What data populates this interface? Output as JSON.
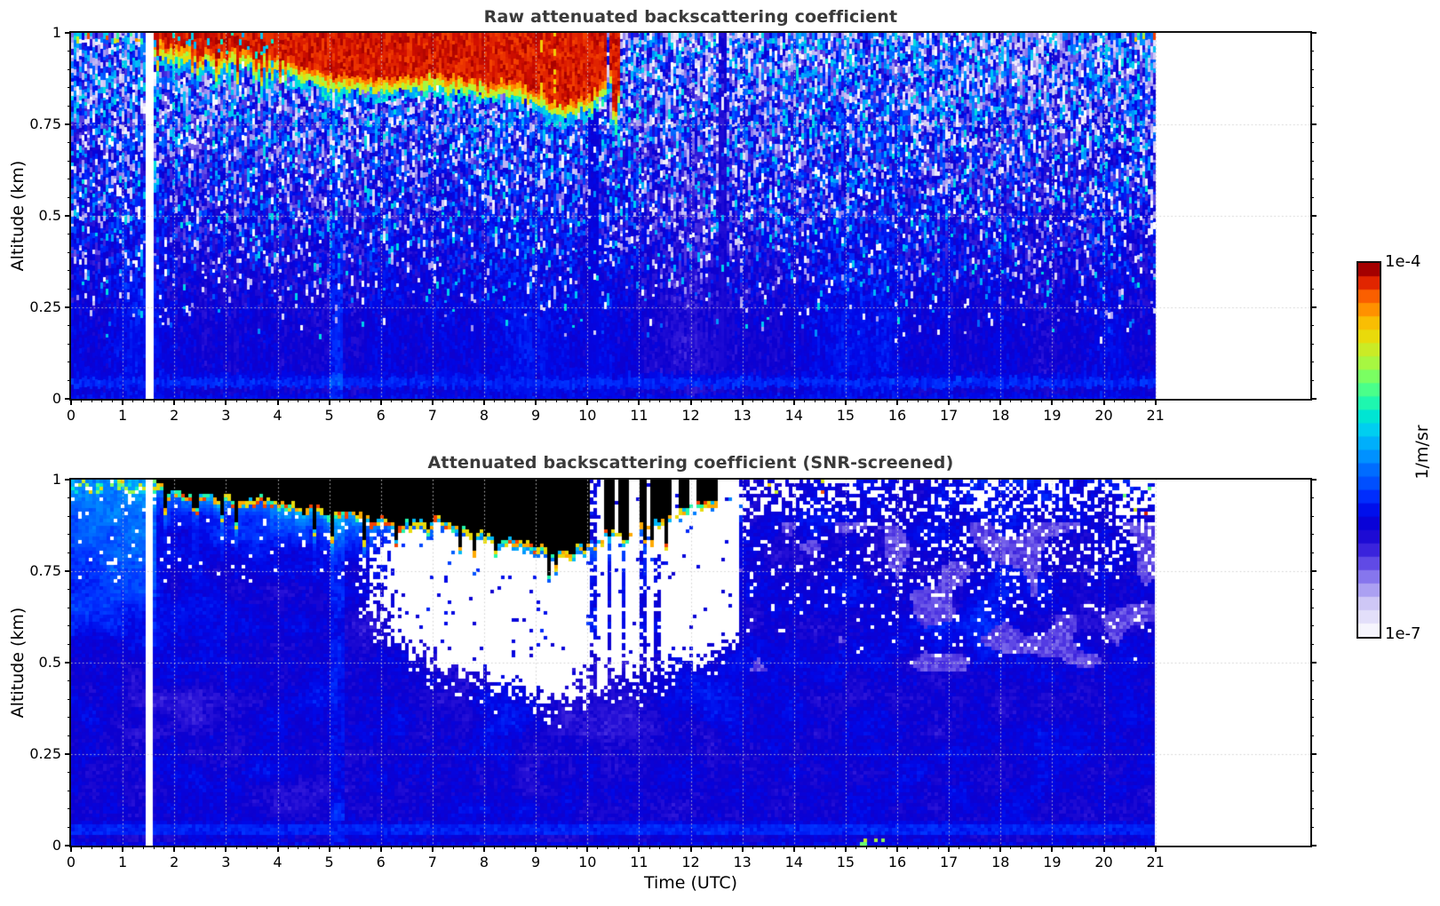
{
  "figure": {
    "background": "#ffffff",
    "title_color": "#3a3a3a",
    "xlabel": "Time (UTC)",
    "ylabel": "Altitude (km)",
    "panels": [
      {
        "title": "Raw attenuated backscattering coefficient"
      },
      {
        "title": "Attenuated backscattering coefficient (SNR-screened)"
      }
    ],
    "colorbar": {
      "label_top": "1e-4",
      "label_bottom": "1e-7",
      "unit": "1/m/sr",
      "levels": 28
    }
  },
  "colormap": {
    "scale": "log10",
    "domain": [
      1e-07,
      0.0001
    ],
    "stops": [
      [
        0.0,
        "#ffffff"
      ],
      [
        0.04,
        "#ece9fb"
      ],
      [
        0.09,
        "#cdc6f6"
      ],
      [
        0.13,
        "#a89cf2"
      ],
      [
        0.17,
        "#7e6cec"
      ],
      [
        0.21,
        "#5138e2"
      ],
      [
        0.25,
        "#2b14d8"
      ],
      [
        0.29,
        "#0d00cf"
      ],
      [
        0.33,
        "#0008e8"
      ],
      [
        0.38,
        "#0030ff"
      ],
      [
        0.44,
        "#0068ff"
      ],
      [
        0.5,
        "#00a2ff"
      ],
      [
        0.55,
        "#00ccf2"
      ],
      [
        0.6,
        "#00eec8"
      ],
      [
        0.65,
        "#3cff96"
      ],
      [
        0.7,
        "#7fff5e"
      ],
      [
        0.75,
        "#bdf231"
      ],
      [
        0.8,
        "#e8dc0c"
      ],
      [
        0.85,
        "#ffb300"
      ],
      [
        0.89,
        "#ff7d00"
      ],
      [
        0.93,
        "#f64400"
      ],
      [
        0.96,
        "#d31000"
      ],
      [
        0.98,
        "#a80000"
      ],
      [
        1.0,
        "#7f0000"
      ]
    ]
  },
  "chart_data": [
    {
      "type": "heatmap",
      "title": "Raw attenuated backscattering coefficient",
      "xlabel": "Time (UTC)",
      "ylabel": "Altitude (km)",
      "units": "1/m/sr",
      "x_axis_range_hours": [
        0,
        24
      ],
      "x_data_end_hour": 21,
      "x_ticks": [
        0,
        1,
        2,
        3,
        4,
        5,
        6,
        7,
        8,
        9,
        10,
        11,
        12,
        13,
        14,
        15,
        16,
        17,
        18,
        19,
        20,
        21
      ],
      "y_range_km": [
        0,
        1
      ],
      "y_ticks": [
        0,
        0.25,
        0.5,
        0.75,
        1
      ],
      "value_range": [
        1e-07,
        0.0001
      ],
      "seed": 42,
      "features": {
        "dropout_column_hours": [
          1.46,
          1.6
        ],
        "surface_bright_band_km": [
          0.03,
          0.055
        ],
        "aerosol_plume_hours": [
          5.0,
          5.28
        ],
        "calm_columns_hours": [
          [
            10.0,
            10.22
          ],
          [
            12.52,
            12.72
          ]
        ],
        "cloud_interval_hours": [
          1.62,
          10.38
        ],
        "cloud_bottom_km": [
          [
            1.62,
            0.975
          ],
          [
            1.9,
            0.96
          ],
          [
            2.3,
            0.955
          ],
          [
            2.8,
            0.95
          ],
          [
            3.3,
            0.945
          ],
          [
            3.8,
            0.94
          ],
          [
            4.1,
            0.935
          ],
          [
            4.45,
            0.9
          ],
          [
            4.8,
            0.885
          ],
          [
            5.4,
            0.878
          ],
          [
            6.0,
            0.872
          ],
          [
            6.6,
            0.875
          ],
          [
            7.0,
            0.89
          ],
          [
            7.35,
            0.875
          ],
          [
            7.9,
            0.868
          ],
          [
            8.5,
            0.862
          ],
          [
            8.9,
            0.845
          ],
          [
            9.2,
            0.82
          ],
          [
            9.55,
            0.8
          ],
          [
            9.85,
            0.815
          ],
          [
            10.1,
            0.83
          ],
          [
            10.38,
            0.875
          ]
        ],
        "cloud_blob_interval_hours": [
          10.44,
          10.64
        ],
        "cloud_blob_bottom_km": [
          [
            10.44,
            0.93
          ],
          [
            10.5,
            0.8
          ],
          [
            10.56,
            0.78
          ],
          [
            10.64,
            0.9
          ]
        ]
      }
    },
    {
      "type": "heatmap",
      "title": "Attenuated backscattering coefficient (SNR-screened)",
      "xlabel": "Time (UTC)",
      "ylabel": "Altitude (km)",
      "units": "1/m/sr",
      "x_axis_range_hours": [
        0,
        24
      ],
      "x_data_end_hour": 21,
      "x_ticks": [
        0,
        1,
        2,
        3,
        4,
        5,
        6,
        7,
        8,
        9,
        10,
        11,
        12,
        13,
        14,
        15,
        16,
        17,
        18,
        19,
        20,
        21
      ],
      "y_range_km": [
        0,
        1
      ],
      "y_ticks": [
        0,
        0.25,
        0.5,
        0.75,
        1
      ],
      "value_range": [
        1e-07,
        0.0001
      ],
      "seed": 1337,
      "features": {
        "dropout_column_hours": [
          1.46,
          1.6
        ],
        "surface_bright_band_km": [
          0.03,
          0.055
        ],
        "aerosol_plume_hours": [
          5.0,
          5.28
        ],
        "black_saturated_interval_hours": [
          1.62,
          12.5
        ],
        "black_top_boundary_km": [
          [
            1.62,
            0.985
          ],
          [
            2.0,
            0.968
          ],
          [
            2.6,
            0.958
          ],
          [
            3.2,
            0.952
          ],
          [
            3.8,
            0.945
          ],
          [
            4.3,
            0.93
          ],
          [
            5.0,
            0.915
          ],
          [
            5.6,
            0.905
          ],
          [
            6.1,
            0.895
          ],
          [
            6.4,
            0.885
          ],
          [
            6.8,
            0.878
          ],
          [
            7.05,
            0.895
          ],
          [
            7.35,
            0.88
          ],
          [
            7.7,
            0.858
          ],
          [
            8.1,
            0.845
          ],
          [
            8.5,
            0.838
          ],
          [
            8.9,
            0.822
          ],
          [
            9.25,
            0.805
          ],
          [
            9.55,
            0.795
          ],
          [
            9.85,
            0.812
          ],
          [
            10.1,
            0.825
          ],
          [
            10.35,
            0.85
          ],
          [
            10.6,
            0.862
          ],
          [
            10.9,
            0.878
          ],
          [
            11.2,
            0.888
          ],
          [
            11.5,
            0.89
          ],
          [
            11.8,
            0.915
          ],
          [
            12.1,
            0.93
          ],
          [
            12.5,
            0.95
          ]
        ],
        "black_gaps_hours": [
          [
            10.05,
            10.33
          ],
          [
            10.5,
            10.6
          ],
          [
            10.82,
            10.98
          ],
          [
            11.15,
            11.25
          ],
          [
            11.6,
            11.75
          ],
          [
            11.95,
            12.1
          ]
        ],
        "snr_mask_interval_hours": [
          5.4,
          12.95
        ],
        "snr_mask_bottom_km": [
          [
            5.4,
            0.66
          ],
          [
            5.8,
            0.6
          ],
          [
            6.2,
            0.545
          ],
          [
            6.6,
            0.51
          ],
          [
            7.0,
            0.5
          ],
          [
            7.4,
            0.465
          ],
          [
            7.9,
            0.445
          ],
          [
            8.4,
            0.43
          ],
          [
            8.9,
            0.41
          ],
          [
            9.3,
            0.39
          ],
          [
            9.7,
            0.395
          ],
          [
            10.1,
            0.415
          ],
          [
            10.6,
            0.43
          ],
          [
            11.1,
            0.45
          ],
          [
            11.6,
            0.47
          ],
          [
            12.1,
            0.5
          ],
          [
            12.55,
            0.52
          ],
          [
            12.9,
            0.555
          ]
        ],
        "blue_gap_columns": [
          [
            10.02,
            10.16,
            0,
            1.02
          ],
          [
            10.36,
            10.46,
            0,
            0.92
          ],
          [
            10.66,
            10.76,
            0,
            0.82
          ],
          [
            11.04,
            11.12,
            0,
            0.86
          ],
          [
            11.3,
            11.4,
            0.35,
            0.8
          ]
        ]
      }
    }
  ]
}
